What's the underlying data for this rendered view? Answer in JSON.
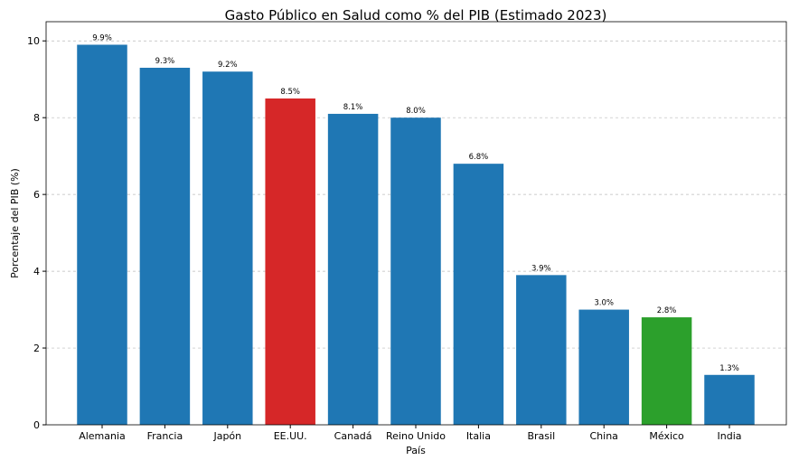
{
  "chart_data": {
    "type": "bar",
    "title": "Gasto Público en Salud como % del PIB (Estimado 2023)",
    "xlabel": "País",
    "ylabel": "Porcentaje del PIB (%)",
    "categories": [
      "Alemania",
      "Francia",
      "Japón",
      "EE.UU.",
      "Canadá",
      "Reino Unido",
      "Italia",
      "Brasil",
      "China",
      "México",
      "India"
    ],
    "values": [
      9.9,
      9.3,
      9.2,
      8.5,
      8.1,
      8.0,
      6.8,
      3.9,
      3.0,
      2.8,
      1.3
    ],
    "data_labels": [
      "9.9%",
      "9.3%",
      "9.2%",
      "8.5%",
      "8.1%",
      "8.0%",
      "6.8%",
      "3.9%",
      "3.0%",
      "2.8%",
      "1.3%"
    ],
    "colors": [
      "#1f77b4",
      "#1f77b4",
      "#1f77b4",
      "#d62728",
      "#1f77b4",
      "#1f77b4",
      "#1f77b4",
      "#1f77b4",
      "#1f77b4",
      "#2ca02c",
      "#1f77b4"
    ],
    "ylim": [
      0,
      10.5
    ],
    "yticks": [
      0,
      2,
      4,
      6,
      8,
      10
    ],
    "grid": "y-dashed",
    "legend": "none"
  }
}
